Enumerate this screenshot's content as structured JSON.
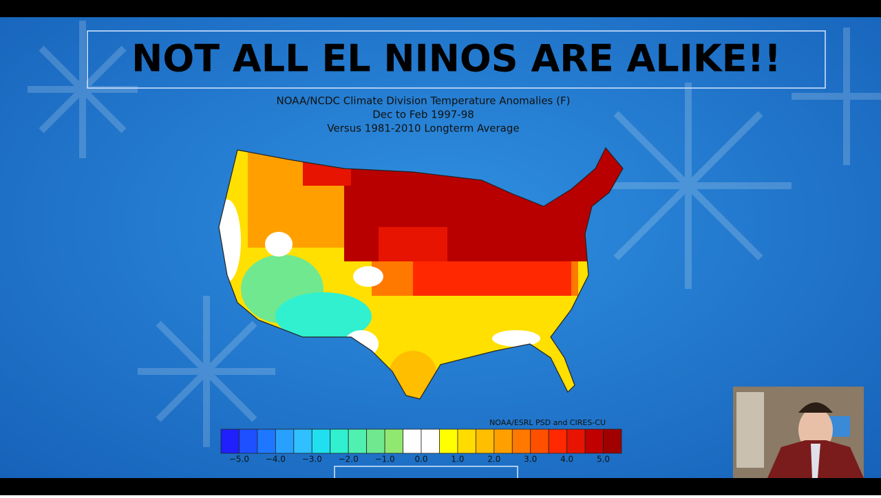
{
  "header": {
    "title": "NOT ALL EL NINOS ARE ALIKE!!"
  },
  "map": {
    "title_lines": [
      "NOAA/NCDC Climate Division Temperature Anomalies (F)",
      "Dec to Feb 1997-98",
      "Versus 1981-2010 Longterm Average"
    ]
  },
  "colorbar": {
    "colors": [
      "#2020ff",
      "#1e50ff",
      "#1e78ff",
      "#28a0ff",
      "#30c0ff",
      "#20e0f0",
      "#30f0d0",
      "#50f0b0",
      "#70e890",
      "#90e870",
      "#ffffff",
      "#ffffff",
      "#ffff00",
      "#ffdc00",
      "#ffbe00",
      "#ffa000",
      "#ff7800",
      "#ff5000",
      "#ff2800",
      "#e61400",
      "#c00000",
      "#a00000"
    ],
    "tick_labels": [
      "−5.0",
      "−4.0",
      "−3.0",
      "−2.0",
      "−1.0",
      "0.0",
      "1.0",
      "2.0",
      "3.0",
      "4.0",
      "5.0"
    ],
    "credit": "NOAA/ESRL PSD and CIRES-CU"
  }
}
